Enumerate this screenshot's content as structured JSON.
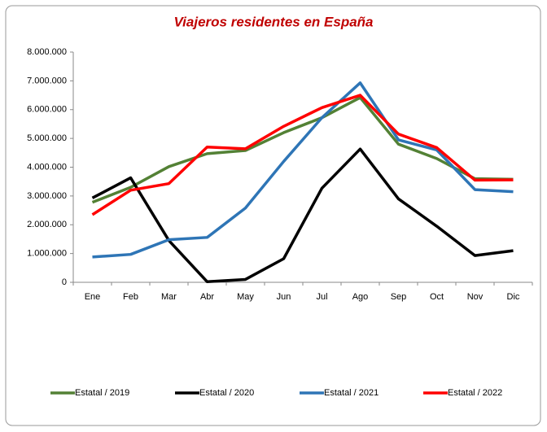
{
  "chart_data": {
    "type": "line",
    "title": "Viajeros residentes en España",
    "categories": [
      "Ene",
      "Feb",
      "Mar",
      "Abr",
      "May",
      "Jun",
      "Jul",
      "Ago",
      "Sep",
      "Oct",
      "Nov",
      "Dic"
    ],
    "series": [
      {
        "name": "Estatal / 2019",
        "color": "#538135",
        "values": [
          2780000,
          3300000,
          4020000,
          4470000,
          4580000,
          5200000,
          5720000,
          6420000,
          4800000,
          4300000,
          3600000,
          3580000
        ]
      },
      {
        "name": "Estatal / 2020",
        "color": "#000000",
        "values": [
          2930000,
          3630000,
          1450000,
          20000,
          100000,
          820000,
          3270000,
          4630000,
          2900000,
          1950000,
          930000,
          1100000
        ]
      },
      {
        "name": "Estatal / 2021",
        "color": "#2e75b6",
        "values": [
          880000,
          970000,
          1480000,
          1560000,
          2580000,
          4200000,
          5720000,
          6930000,
          4950000,
          4600000,
          3220000,
          3150000
        ]
      },
      {
        "name": "Estatal / 2022",
        "color": "#ff0000",
        "values": [
          2350000,
          3200000,
          3430000,
          4700000,
          4640000,
          5420000,
          6070000,
          6500000,
          5150000,
          4680000,
          3550000,
          3560000
        ]
      }
    ],
    "ylim": [
      0,
      8000000
    ],
    "yticks": [
      0,
      {
        "value": 1000000,
        "label": "1.000.000"
      },
      {
        "value": 2000000,
        "label": "2.000.000"
      },
      {
        "value": 3000000,
        "label": "3.000.000"
      },
      {
        "value": 4000000,
        "label": "4.000.000"
      },
      {
        "value": 5000000,
        "label": "5.000.000"
      },
      {
        "value": 6000000,
        "label": "6.000.000"
      },
      {
        "value": 7000000,
        "label": "7.000.000"
      },
      {
        "value": 8000000,
        "label": "8.000.000"
      }
    ],
    "grid": false,
    "legend": "bottom"
  }
}
